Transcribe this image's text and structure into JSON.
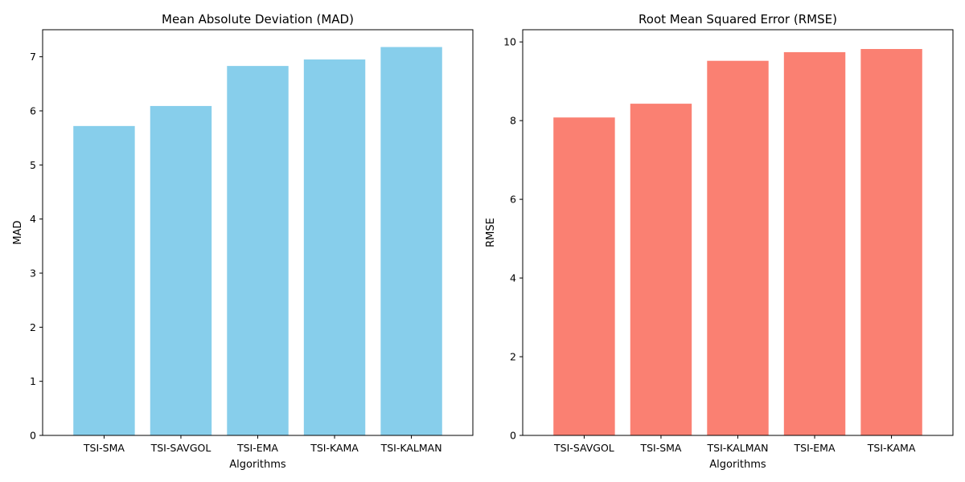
{
  "chart_data": [
    {
      "type": "bar",
      "title": "Mean Absolute Deviation (MAD)",
      "xlabel": "Algorithms",
      "ylabel": "MAD",
      "categories": [
        "TSI-SMA",
        "TSI-SAVGOL",
        "TSI-EMA",
        "TSI-KAMA",
        "TSI-KALMAN"
      ],
      "values": [
        5.72,
        6.09,
        6.83,
        6.95,
        7.18
      ],
      "ylim": [
        0,
        7.5
      ],
      "yticks": [
        0,
        1,
        2,
        3,
        4,
        5,
        6,
        7
      ],
      "color": "#87ceeb",
      "grid": false
    },
    {
      "type": "bar",
      "title": "Root Mean Squared Error (RMSE)",
      "xlabel": "Algorithms",
      "ylabel": "RMSE",
      "categories": [
        "TSI-SAVGOL",
        "TSI-SMA",
        "TSI-KALMAN",
        "TSI-EMA",
        "TSI-KAMA"
      ],
      "values": [
        8.08,
        8.43,
        9.52,
        9.74,
        9.82
      ],
      "ylim": [
        0,
        10.31
      ],
      "yticks": [
        0,
        2,
        4,
        6,
        8,
        10
      ],
      "color": "#fa8072",
      "grid": false
    }
  ]
}
